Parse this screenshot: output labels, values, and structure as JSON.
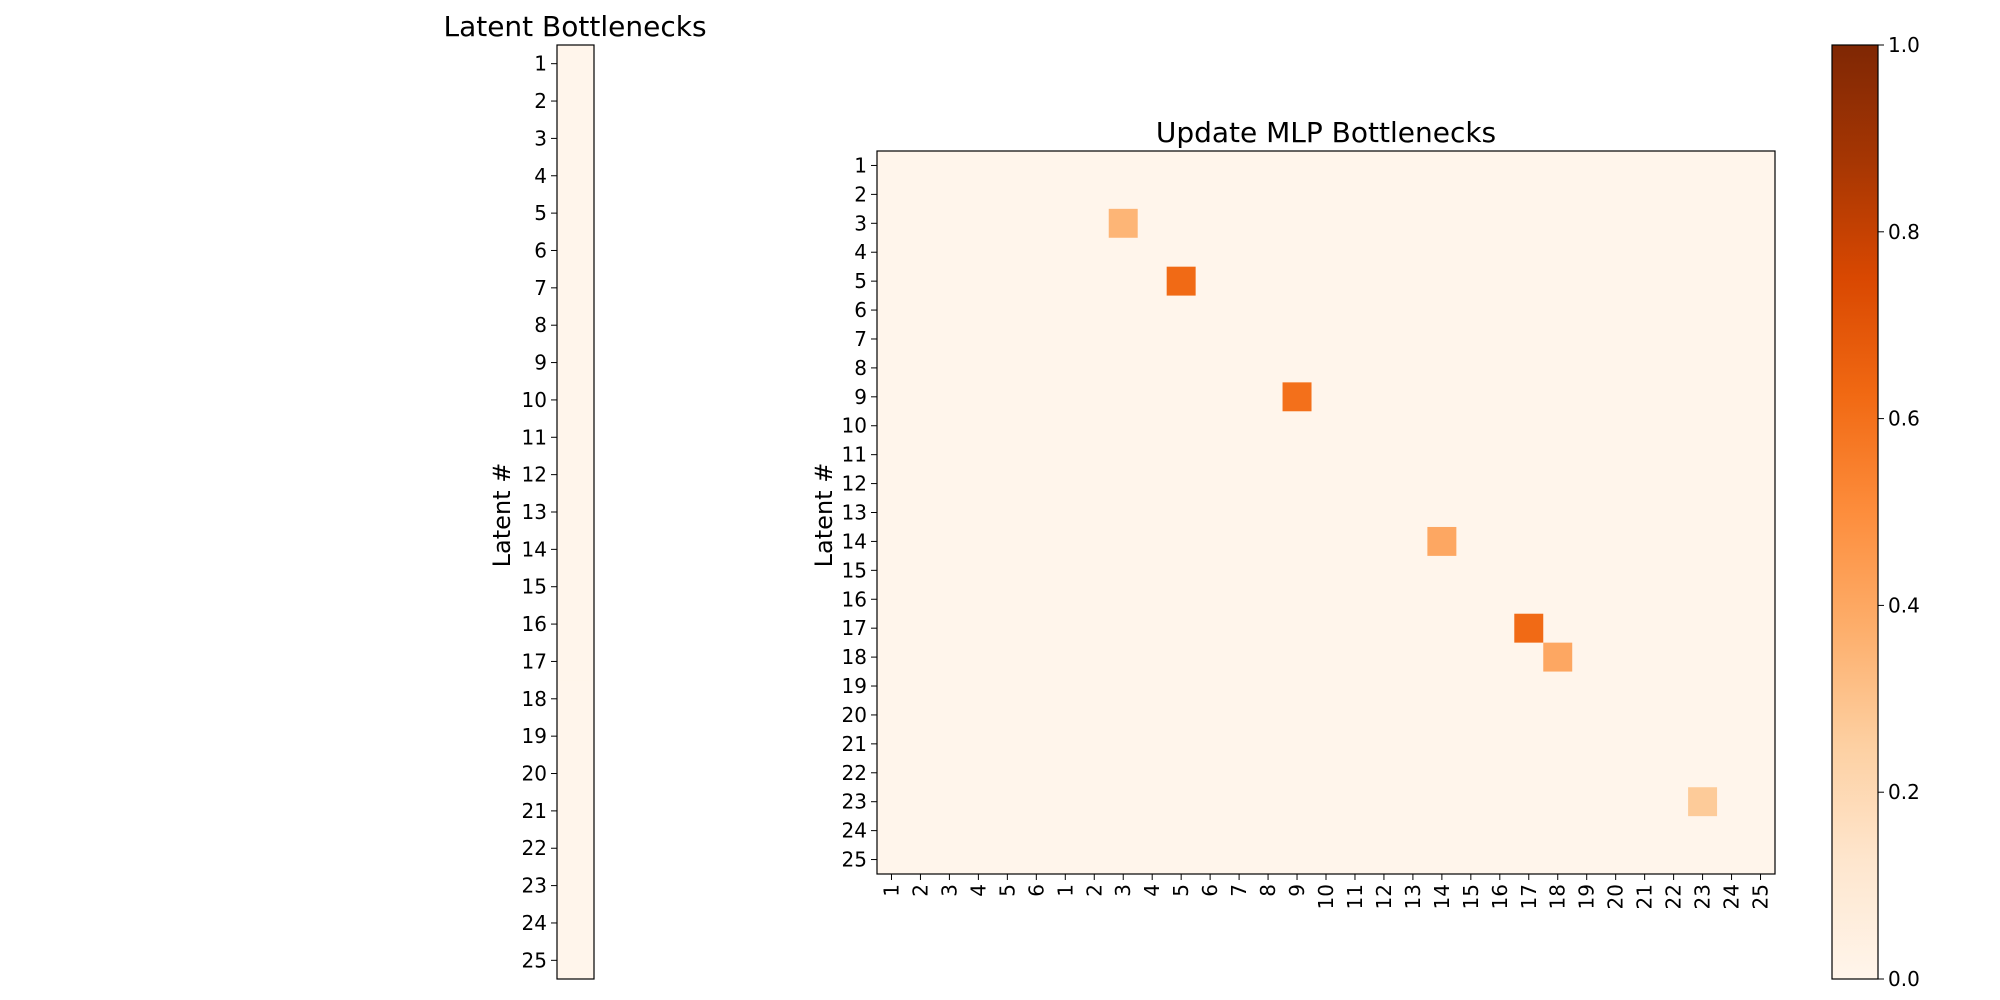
{
  "chart_data": [
    {
      "type": "heatmap",
      "title": "Latent Bottlenecks",
      "ylabel": "Latent #",
      "xlabel": "",
      "y_tick_labels": [
        "1",
        "2",
        "3",
        "4",
        "5",
        "6",
        "7",
        "8",
        "9",
        "10",
        "11",
        "12",
        "13",
        "14",
        "15",
        "16",
        "17",
        "18",
        "19",
        "20",
        "21",
        "22",
        "23",
        "24",
        "25"
      ],
      "x_tick_labels": [],
      "values": [
        0,
        0,
        0,
        0,
        0,
        0,
        0,
        0,
        0,
        0,
        0,
        0,
        0,
        0,
        0,
        0,
        0,
        0,
        0,
        0,
        0,
        0,
        0,
        0,
        0
      ],
      "vmin": 0,
      "vmax": 1,
      "colormap": "Oranges"
    },
    {
      "type": "heatmap",
      "title": "Update MLP Bottlenecks",
      "ylabel": "Latent #",
      "xlabel": "",
      "y_tick_labels": [
        "1",
        "2",
        "3",
        "4",
        "5",
        "6",
        "7",
        "8",
        "9",
        "10",
        "11",
        "12",
        "13",
        "14",
        "15",
        "16",
        "17",
        "18",
        "19",
        "20",
        "21",
        "22",
        "23",
        "24",
        "25"
      ],
      "x_tick_labels": [
        "1",
        "2",
        "3",
        "4",
        "5",
        "6",
        "1",
        "2",
        "3",
        "4",
        "5",
        "6",
        "7",
        "8",
        "9",
        "10",
        "11",
        "12",
        "13",
        "14",
        "15",
        "16",
        "17",
        "18",
        "19",
        "20",
        "21",
        "22",
        "23",
        "24",
        "25"
      ],
      "nonzero_cells": [
        {
          "row": "3",
          "col_index": 8,
          "col_label": "3",
          "value": 0.35
        },
        {
          "row": "5",
          "col_index": 10,
          "col_label": "5",
          "value": 0.62
        },
        {
          "row": "9",
          "col_index": 14,
          "col_label": "9",
          "value": 0.6
        },
        {
          "row": "14",
          "col_index": 19,
          "col_label": "14",
          "value": 0.4
        },
        {
          "row": "17",
          "col_index": 22,
          "col_label": "17",
          "value": 0.62
        },
        {
          "row": "18",
          "col_index": 23,
          "col_label": "18",
          "value": 0.4
        },
        {
          "row": "23",
          "col_index": 28,
          "col_label": "23",
          "value": 0.27
        }
      ],
      "vmin": 0,
      "vmax": 1,
      "colormap": "Oranges"
    }
  ],
  "colorbar": {
    "tick_labels": [
      "0.0",
      "0.2",
      "0.4",
      "0.6",
      "0.8",
      "1.0"
    ],
    "ticks": [
      0,
      0.2,
      0.4,
      0.6,
      0.8,
      1.0
    ],
    "range": [
      0,
      1
    ],
    "colormap": "Oranges"
  }
}
